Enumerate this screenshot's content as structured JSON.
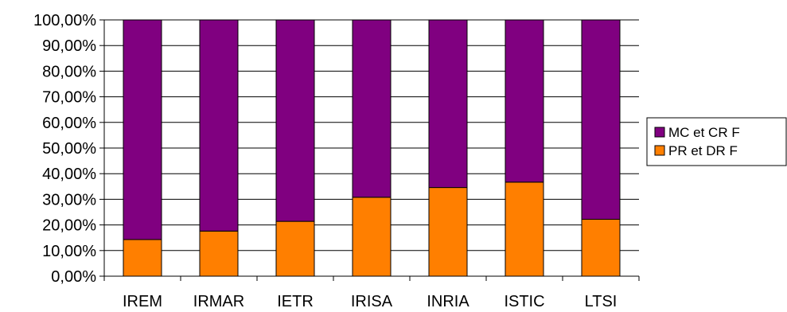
{
  "chart_data": {
    "type": "bar",
    "stacked": true,
    "categories": [
      "IREM",
      "IRMAR",
      "IETR",
      "IRISA",
      "INRIA",
      "ISTIC",
      "LTSI"
    ],
    "series": [
      {
        "name": "PR et DR F",
        "color": "#ff7f00",
        "values": [
          14.3,
          17.6,
          21.4,
          30.8,
          34.6,
          36.7,
          22.2
        ]
      },
      {
        "name": "MC et CR F",
        "color": "#800080",
        "values": [
          85.7,
          82.4,
          78.6,
          69.2,
          65.4,
          63.3,
          77.8
        ]
      }
    ],
    "legend_order": [
      "MC et CR F",
      "PR et DR F"
    ],
    "y_ticks": [
      "0,00%",
      "10,00%",
      "20,00%",
      "30,00%",
      "40,00%",
      "50,00%",
      "60,00%",
      "70,00%",
      "80,00%",
      "90,00%",
      "100,00%"
    ],
    "ylim": [
      0,
      100
    ],
    "grid": true,
    "legend_position": "right",
    "title": "",
    "xlabel": "",
    "ylabel": ""
  }
}
